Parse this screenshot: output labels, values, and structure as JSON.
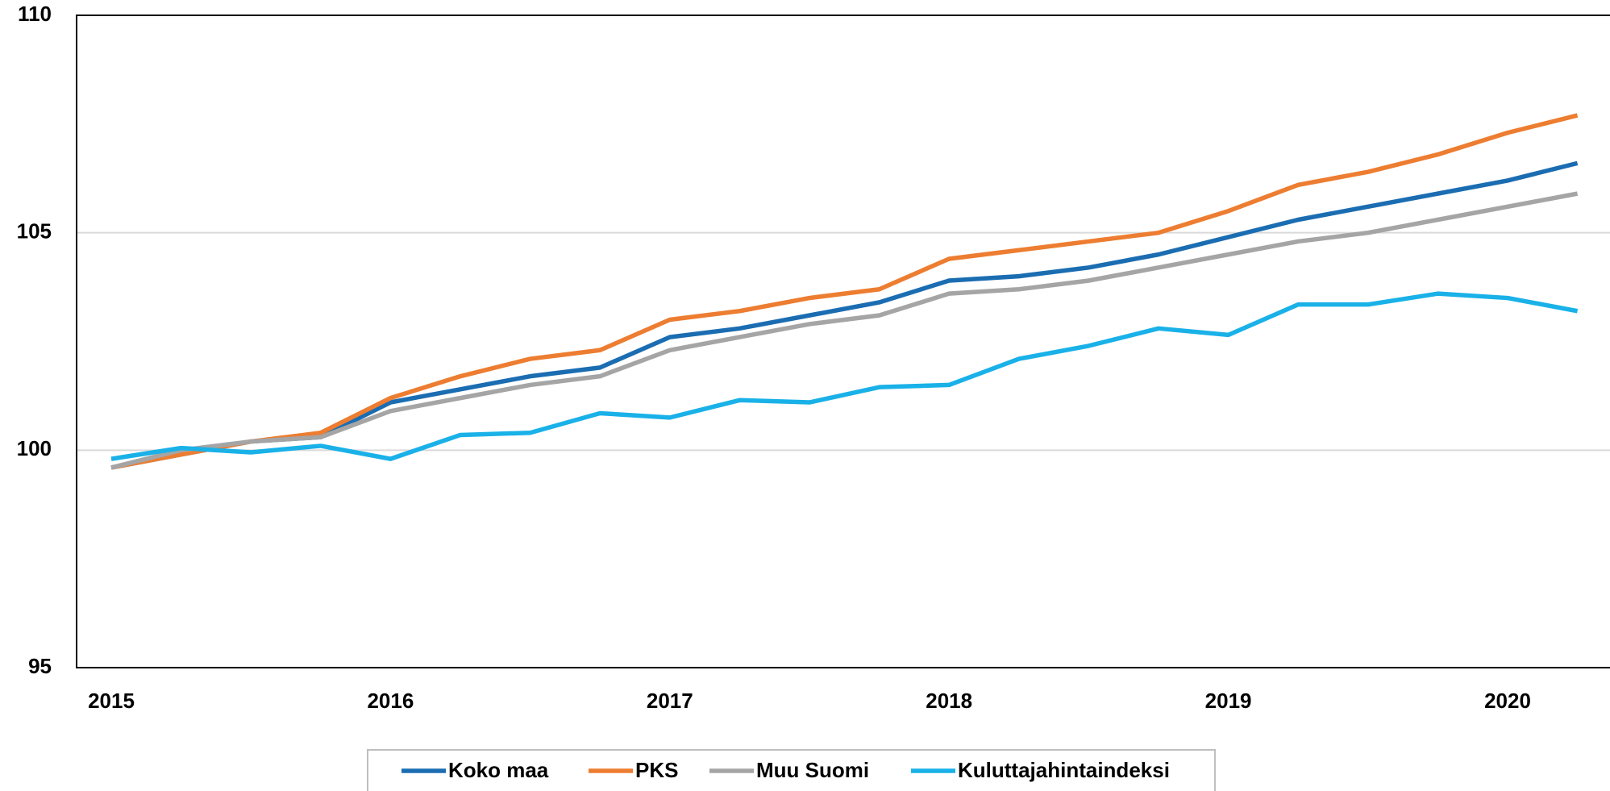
{
  "chart_data": {
    "type": "line",
    "categories": [
      "2015",
      null,
      null,
      null,
      "2016",
      null,
      null,
      null,
      "2017",
      null,
      null,
      null,
      "2018",
      null,
      null,
      null,
      "2019",
      null,
      null,
      null,
      "2020",
      null
    ],
    "series": [
      {
        "name": "Koko maa",
        "color": "#1b6db2",
        "values": [
          99.6,
          99.9,
          100.2,
          100.3,
          101.1,
          101.4,
          101.7,
          101.9,
          102.6,
          102.8,
          103.1,
          103.4,
          103.9,
          104.0,
          104.2,
          104.5,
          104.9,
          105.3,
          105.6,
          105.9,
          106.2,
          106.6
        ]
      },
      {
        "name": "PKS",
        "color": "#ed7d31",
        "values": [
          99.6,
          99.9,
          100.2,
          100.4,
          101.2,
          101.7,
          102.1,
          102.3,
          103.0,
          103.2,
          103.5,
          103.7,
          104.4,
          104.6,
          104.8,
          105.0,
          105.5,
          106.1,
          106.4,
          106.8,
          107.3,
          107.7
        ]
      },
      {
        "name": "Muu Suomi",
        "color": "#a5a5a5",
        "values": [
          99.6,
          100.0,
          100.2,
          100.3,
          100.9,
          101.2,
          101.5,
          101.7,
          102.3,
          102.6,
          102.9,
          103.1,
          103.6,
          103.7,
          103.9,
          104.2,
          104.5,
          104.8,
          105.0,
          105.3,
          105.6,
          105.9
        ]
      },
      {
        "name": "Kuluttajahintaindeksi",
        "color": "#19b1e8",
        "values": [
          99.8,
          100.05,
          99.95,
          100.1,
          99.8,
          100.35,
          100.4,
          100.85,
          100.75,
          101.15,
          101.1,
          101.45,
          101.5,
          102.1,
          102.4,
          102.8,
          102.65,
          103.35,
          103.35,
          103.6,
          103.5,
          103.2
        ]
      }
    ],
    "ylim": [
      95,
      110
    ],
    "yticks": [
      95,
      100,
      105,
      110
    ],
    "grid": true,
    "legend": "bottom"
  }
}
